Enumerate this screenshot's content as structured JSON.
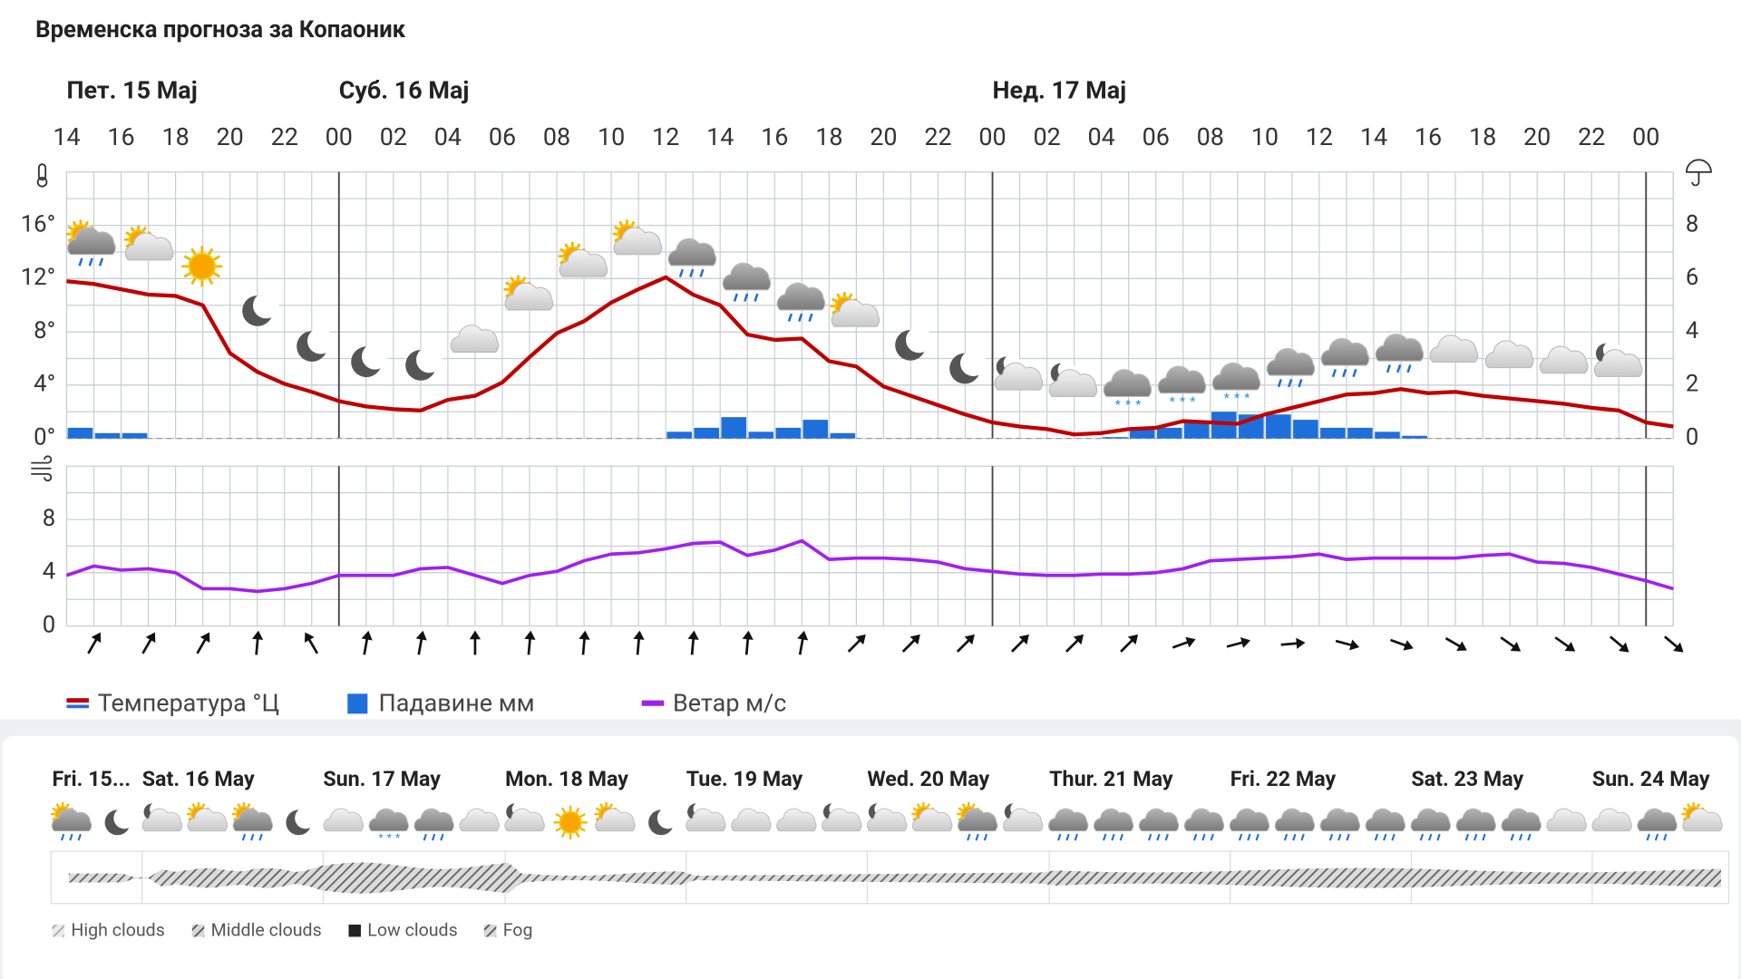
{
  "title": "Временска прогноза за Копаоник",
  "chart_data": [
    {
      "type": "line",
      "days": [
        "Пет. 15 Мај",
        "Суб. 16 Мај",
        "Нед. 17 Мај"
      ],
      "categories": [
        "14",
        null,
        "16",
        null,
        "18",
        null,
        "20",
        null,
        "22",
        null,
        "00",
        null,
        "02",
        null,
        "04",
        null,
        "06",
        null,
        "08",
        null,
        "10",
        null,
        "12",
        null,
        "14",
        null,
        "16",
        null,
        "18",
        null,
        "20",
        null,
        "22",
        null,
        "00",
        null,
        "02",
        null,
        "04",
        null,
        "06",
        null,
        "08",
        null,
        "10",
        null,
        "12",
        null,
        "14",
        null,
        "16",
        null,
        "18",
        null,
        "20",
        null,
        "22",
        null,
        "00",
        null
      ],
      "ylim": [
        0,
        20
      ],
      "yticks": [
        {
          "value": 0,
          "label": "0°"
        },
        {
          "value": 4,
          "label": "4°"
        },
        {
          "value": 8,
          "label": "8°"
        },
        {
          "value": 12,
          "label": "12°"
        },
        {
          "value": 16,
          "label": "16°"
        }
      ],
      "y2lim": [
        0,
        10
      ],
      "y2ticks": [
        0,
        2,
        4,
        6,
        8
      ],
      "grid": true,
      "series": [
        {
          "name": "Температура °Ц",
          "type": "line",
          "color": "#c00000",
          "values": [
            11.8,
            11.6,
            11.2,
            10.8,
            10.7,
            10,
            6.4,
            5,
            4.1,
            3.5,
            2.8,
            2.4,
            2.2,
            2.1,
            2.9,
            3.2,
            4.2,
            6.1,
            7.9,
            8.8,
            10.2,
            11.2,
            12.1,
            10.8,
            10,
            7.8,
            7.4,
            7.5,
            5.8,
            5.4,
            3.9,
            3.2,
            2.5,
            1.8,
            1.2,
            0.9,
            0.7,
            0.3,
            0.4,
            0.7,
            0.8,
            1.3,
            1.2,
            1.1,
            1.8,
            2.3,
            2.8,
            3.3,
            3.4,
            3.7,
            3.4,
            3.5,
            3.2,
            3,
            2.8,
            2.6,
            2.3,
            2.1,
            1.2,
            0.9
          ]
        },
        {
          "name": "Падавине мм",
          "type": "bar",
          "axis": "y2",
          "color": "#1f6fdb",
          "values": [
            0.4,
            0.2,
            0.2,
            0,
            0,
            0,
            0,
            0,
            0,
            0,
            0,
            0,
            0,
            0,
            0,
            0,
            0,
            0,
            0,
            0,
            0,
            0,
            0.25,
            0.4,
            0.8,
            0.25,
            0.4,
            0.7,
            0.2,
            0,
            0,
            0,
            0,
            0,
            0,
            0,
            0,
            0,
            0.05,
            0.4,
            0.4,
            0.6,
            1.0,
            0.9,
            0.9,
            0.7,
            0.4,
            0.4,
            0.25,
            0.1,
            0,
            0,
            0,
            0,
            0,
            0,
            0,
            0,
            0,
            0
          ]
        }
      ]
    },
    {
      "type": "line",
      "ylim": [
        0,
        12
      ],
      "yticks": [
        0,
        4,
        8
      ],
      "grid": true,
      "series": [
        {
          "name": "Ветар м/с",
          "type": "line",
          "color": "#a020f0",
          "values": [
            3.8,
            4.5,
            4.2,
            4.3,
            4,
            2.8,
            2.8,
            2.6,
            2.8,
            3.2,
            3.8,
            3.8,
            3.8,
            4.3,
            4.4,
            3.8,
            3.2,
            3.8,
            4.1,
            4.9,
            5.4,
            5.5,
            5.8,
            6.2,
            6.3,
            5.3,
            5.7,
            6.4,
            5,
            5.1,
            5.1,
            5,
            4.8,
            4.3,
            4.1,
            3.9,
            3.8,
            3.8,
            3.9,
            3.9,
            4,
            4.3,
            4.9,
            5,
            5.1,
            5.2,
            5.4,
            5,
            5.1,
            5.1,
            5.1,
            5.1,
            5.3,
            5.4,
            4.8,
            4.7,
            4.4,
            3.9,
            3.4,
            2.8
          ]
        }
      ],
      "wind_direction": [
        30,
        30,
        30,
        5,
        330,
        10,
        10,
        0,
        5,
        5,
        5,
        5,
        5,
        10,
        45,
        45,
        45,
        45,
        45,
        45,
        70,
        75,
        85,
        105,
        110,
        120,
        125,
        125,
        130,
        130
      ]
    }
  ],
  "forecast_strip": {
    "days": [
      "Fri. 15...",
      "Sat. 16 May",
      "Sun. 17 May",
      "Mon. 18 May",
      "Tue. 19 May",
      "Wed. 20 May",
      "Thur. 21 May",
      "Fri. 22 May",
      "Sat. 23 May",
      "Sun. 24 May"
    ],
    "legend": [
      "High clouds",
      "Middle clouds",
      "Low clouds",
      "Fog"
    ]
  }
}
